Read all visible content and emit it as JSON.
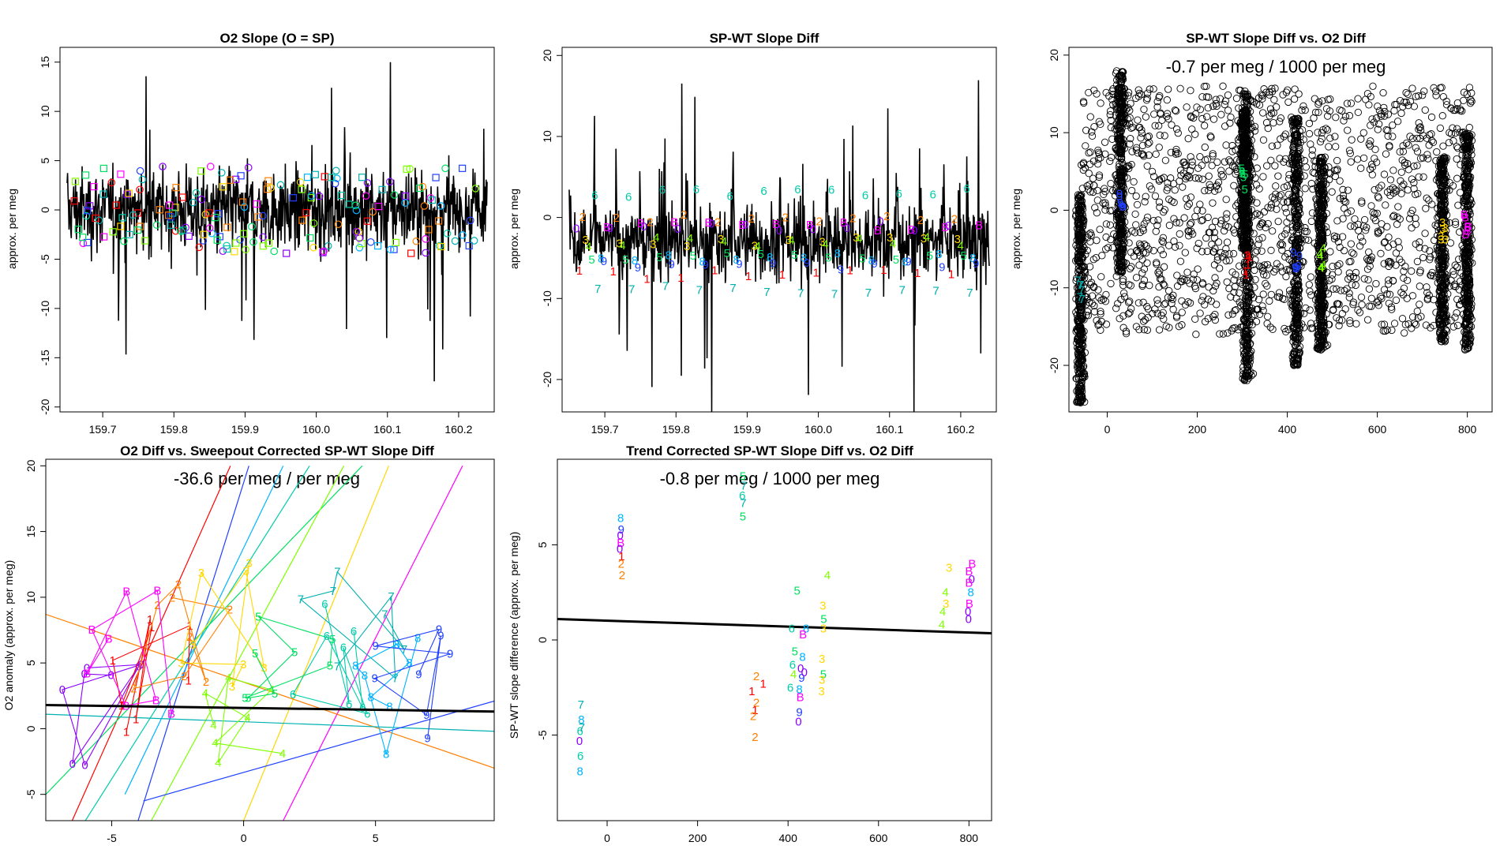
{
  "palette": {
    "0": "#8b00ff",
    "1": "#ff0000",
    "2": "#ff7f00",
    "3": "#ffd700",
    "4": "#7fff00",
    "5": "#00e060",
    "6": "#00ccaa",
    "7": "#00b0b0",
    "8": "#00b3ff",
    "9": "#2040ff",
    "B": "#ff00ff"
  },
  "chart_data": [
    {
      "type": "line",
      "title": "O2 Slope (O = SP)",
      "ylabel": "approx. per meg",
      "xlabel": "",
      "xlim": [
        159.64,
        160.25
      ],
      "ylim": [
        -20.5,
        16.5
      ],
      "xticks": [
        159.7,
        159.8,
        159.9,
        160.0,
        160.1,
        160.2
      ],
      "xtick_labels": [
        "159.7",
        "159.8",
        "159.9",
        "160.0",
        "160.1",
        "160.2"
      ],
      "yticks": [
        -20,
        -15,
        -10,
        -5,
        0,
        5,
        10,
        15
      ],
      "ytick_labels": [
        "-20",
        "-15",
        "-10",
        "-5",
        "0",
        "5",
        "10",
        "15"
      ],
      "series": [
        {
          "values_summary": {
            "center": 0,
            "band": [
              -5,
              5
            ],
            "spikes": [
              -19,
              15
            ]
          }
        }
      ],
      "markers": "coloured squares and circles, values about -5 to 5"
    },
    {
      "type": "line",
      "title": "SP-WT Slope Diff",
      "ylabel": "approx. per meg",
      "xlabel": "",
      "xlim": [
        159.64,
        160.25
      ],
      "ylim": [
        -24,
        21
      ],
      "xticks": [
        159.7,
        159.8,
        159.9,
        160.0,
        160.1,
        160.2
      ],
      "xtick_labels": [
        "159.7",
        "159.8",
        "159.9",
        "160.0",
        "160.1",
        "160.2"
      ],
      "yticks": [
        -20,
        -10,
        0,
        10,
        20
      ],
      "ytick_labels": [
        "-20",
        "-10",
        "0",
        "10",
        "20"
      ],
      "digit_levels": {
        "1": -7,
        "2": 0,
        "3": -3,
        "4": -3,
        "5": -5,
        "6": 3,
        "7": -9,
        "8": -5,
        "9": -6,
        "0": -1,
        "B": -1
      }
    },
    {
      "type": "scatter",
      "title": "SP-WT Slope Diff vs. O2 Diff",
      "ylabel": "approx. per meg",
      "xlabel": "",
      "annotation": "-0.7 per meg / 1000 per meg",
      "xlim": [
        -85,
        855
      ],
      "ylim": [
        -26,
        21
      ],
      "xticks": [
        0,
        200,
        400,
        600,
        800
      ],
      "xtick_labels": [
        "0",
        "200",
        "400",
        "600",
        "800"
      ],
      "yticks": [
        -20,
        -10,
        0,
        10,
        20
      ],
      "ytick_labels": [
        "-20",
        "-10",
        "0",
        "10",
        "20"
      ],
      "clusters": [
        {
          "x": -60,
          "y_range": [
            -25,
            2
          ],
          "digit": "7",
          "digit_y": -10
        },
        {
          "x": 30,
          "y_range": [
            -8,
            18
          ],
          "digit": "9",
          "digit_y": 1
        },
        {
          "x": 310,
          "y_range": [
            -22,
            15
          ],
          "digit": "1",
          "digit_y": -7
        },
        {
          "x": 305,
          "y_range": [
            -5,
            13
          ],
          "digit": "5",
          "digit_y": 4
        },
        {
          "x": 420,
          "y_range": [
            -20,
            12
          ],
          "digit": "9",
          "digit_y": -6
        },
        {
          "x": 475,
          "y_range": [
            -18,
            7
          ],
          "digit": "4",
          "digit_y": -6
        },
        {
          "x": 745,
          "y_range": [
            -17,
            7
          ],
          "digit": "3",
          "digit_y": -3
        },
        {
          "x": 800,
          "y_range": [
            -18,
            10
          ],
          "digit": "B",
          "digit_y": -2
        }
      ]
    },
    {
      "type": "line",
      "title": "O2 Diff vs. Sweepout Corrected SP-WT Slope Diff",
      "ylabel": "O2 anomaly (approx. per meg)",
      "xlabel": "",
      "annotation": "-36.6 per meg / per meg",
      "xlim": [
        -7.5,
        9.5
      ],
      "ylim": [
        -7,
        20.5
      ],
      "xticks": [
        -5,
        0,
        5
      ],
      "xtick_labels": [
        "-5",
        "0",
        "5"
      ],
      "yticks": [
        -5,
        0,
        5,
        10,
        15,
        20
      ],
      "ytick_labels": [
        "-5",
        "0",
        "5",
        "10",
        "15",
        "20"
      ],
      "fit_line": {
        "x": [
          -7.5,
          9.5
        ],
        "y": [
          1.8,
          1.3
        ]
      }
    },
    {
      "type": "scatter",
      "title": "Trend Corrected SP-WT Slope Diff vs. O2 Diff",
      "ylabel": "SP-WT slope difference (approx. per meg)",
      "xlabel": "",
      "annotation": "-0.8 per meg / 1000 per meg",
      "xlim": [
        -110,
        850
      ],
      "ylim": [
        -9.5,
        9.5
      ],
      "xticks": [
        0,
        200,
        400,
        600,
        800
      ],
      "xtick_labels": [
        "0",
        "200",
        "400",
        "600",
        "800"
      ],
      "yticks": [
        -5,
        0,
        5
      ],
      "ytick_labels": [
        "-5",
        "0",
        "5"
      ],
      "fit_line": {
        "x": [
          -110,
          850
        ],
        "y": [
          1.1,
          0.35
        ]
      },
      "points": [
        {
          "l": "7",
          "x": -58,
          "y": -3.4
        },
        {
          "l": "8",
          "x": -57,
          "y": -4.2
        },
        {
          "l": "6",
          "x": -60,
          "y": -4.8
        },
        {
          "l": "0",
          "x": -61,
          "y": -5.3
        },
        {
          "l": "6",
          "x": -59,
          "y": -6.1
        },
        {
          "l": "8",
          "x": -60,
          "y": -6.9
        },
        {
          "l": "7",
          "x": -56,
          "y": -4.6
        },
        {
          "l": "8",
          "x": 30,
          "y": 6.4
        },
        {
          "l": "9",
          "x": 31,
          "y": 5.8
        },
        {
          "l": "0",
          "x": 29,
          "y": 5.5
        },
        {
          "l": "B",
          "x": 30,
          "y": 5.1
        },
        {
          "l": "0",
          "x": 28,
          "y": 4.8
        },
        {
          "l": "1",
          "x": 32,
          "y": 4.4
        },
        {
          "l": "2",
          "x": 31,
          "y": 4.0
        },
        {
          "l": "2",
          "x": 33,
          "y": 3.4
        },
        {
          "l": "5",
          "x": 300,
          "y": 8.6
        },
        {
          "l": "7",
          "x": 302,
          "y": 8.1
        },
        {
          "l": "6",
          "x": 299,
          "y": 7.6
        },
        {
          "l": "7",
          "x": 301,
          "y": 7.2
        },
        {
          "l": "5",
          "x": 300,
          "y": 6.5
        },
        {
          "l": "2",
          "x": 330,
          "y": -1.9
        },
        {
          "l": "1",
          "x": 345,
          "y": -2.3
        },
        {
          "l": "1",
          "x": 320,
          "y": -2.7
        },
        {
          "l": "2",
          "x": 330,
          "y": -3.3
        },
        {
          "l": "1",
          "x": 327,
          "y": -3.7
        },
        {
          "l": "2",
          "x": 323,
          "y": -4.0
        },
        {
          "l": "2",
          "x": 327,
          "y": -5.1
        },
        {
          "l": "5",
          "x": 420,
          "y": 2.6
        },
        {
          "l": "6",
          "x": 408,
          "y": 0.6
        },
        {
          "l": "5",
          "x": 415,
          "y": -0.6
        },
        {
          "l": "6",
          "x": 410,
          "y": -1.3
        },
        {
          "l": "4",
          "x": 412,
          "y": -1.8
        },
        {
          "l": "6",
          "x": 405,
          "y": -2.5
        },
        {
          "l": "8",
          "x": 440,
          "y": 0.6
        },
        {
          "l": "8",
          "x": 432,
          "y": -0.9
        },
        {
          "l": "0",
          "x": 428,
          "y": -1.5
        },
        {
          "l": "9",
          "x": 430,
          "y": -2.0
        },
        {
          "l": "B",
          "x": 433,
          "y": 0.3
        },
        {
          "l": "0",
          "x": 436,
          "y": -1.7
        },
        {
          "l": "8",
          "x": 425,
          "y": -2.6
        },
        {
          "l": "B",
          "x": 427,
          "y": -3.0
        },
        {
          "l": "9",
          "x": 425,
          "y": -3.8
        },
        {
          "l": "0",
          "x": 423,
          "y": -4.3
        },
        {
          "l": "4",
          "x": 487,
          "y": 3.4
        },
        {
          "l": "3",
          "x": 477,
          "y": 1.8
        },
        {
          "l": "5",
          "x": 479,
          "y": 1.1
        },
        {
          "l": "3",
          "x": 478,
          "y": 0.6
        },
        {
          "l": "3",
          "x": 475,
          "y": -1.0
        },
        {
          "l": "5",
          "x": 478,
          "y": -1.8
        },
        {
          "l": "3",
          "x": 475,
          "y": -2.1
        },
        {
          "l": "3",
          "x": 474,
          "y": -2.7
        },
        {
          "l": "3",
          "x": 756,
          "y": 3.8
        },
        {
          "l": "4",
          "x": 748,
          "y": 2.5
        },
        {
          "l": "3",
          "x": 749,
          "y": 1.9
        },
        {
          "l": "4",
          "x": 742,
          "y": 1.5
        },
        {
          "l": "4",
          "x": 740,
          "y": 0.8
        },
        {
          "l": "B",
          "x": 807,
          "y": 4.0
        },
        {
          "l": "B",
          "x": 800,
          "y": 3.6
        },
        {
          "l": "0",
          "x": 806,
          "y": 3.2
        },
        {
          "l": "B",
          "x": 800,
          "y": 3.0
        },
        {
          "l": "8",
          "x": 804,
          "y": 2.5
        },
        {
          "l": "B",
          "x": 801,
          "y": 1.9
        },
        {
          "l": "0",
          "x": 798,
          "y": 1.5
        },
        {
          "l": "0",
          "x": 799,
          "y": 1.1
        }
      ]
    }
  ]
}
